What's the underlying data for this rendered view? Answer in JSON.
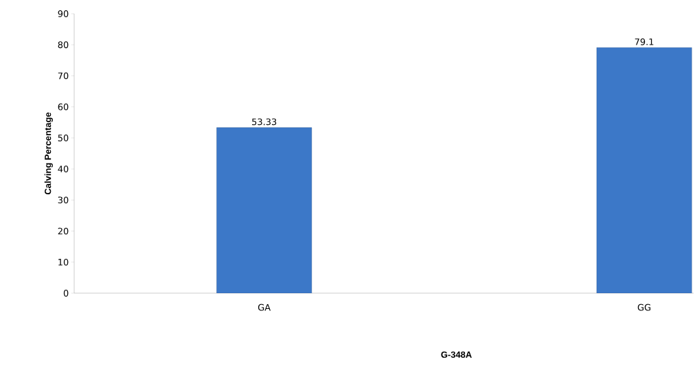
{
  "chart_data": {
    "type": "bar",
    "xlabel": "G-348A",
    "ylabel": "Calving Percentage",
    "categories": [
      "GA",
      "GG"
    ],
    "values": [
      53.33,
      79.1
    ],
    "value_labels": [
      "53.33",
      "79.1"
    ],
    "color": "#3c78c8",
    "ylim": [
      0,
      90
    ],
    "yticks": [
      0,
      10,
      20,
      30,
      40,
      50,
      60,
      70,
      80,
      90
    ],
    "grid": false
  }
}
